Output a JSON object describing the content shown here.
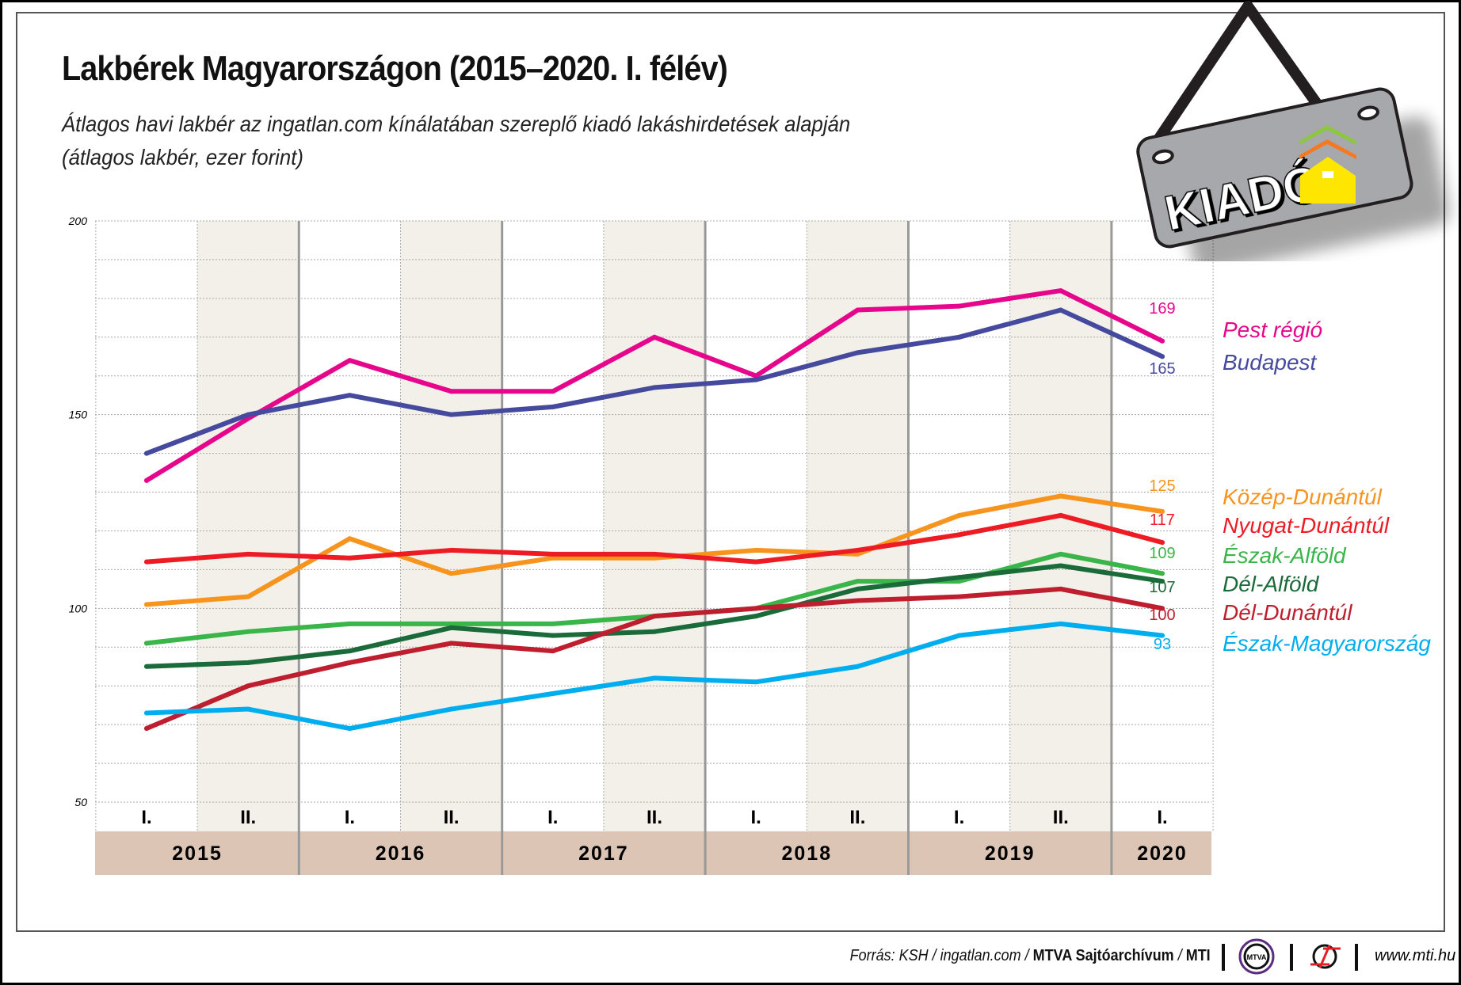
{
  "title": "Lakbérek Magyarországon (2015–2020. I. félév)",
  "subtitle_line1": "Átlagos havi lakbér az ingatlan.com kínálatában szereplő kiadó lakáshirdetések alapján",
  "subtitle_line2": "(átlagos lakbér, ezer forint)",
  "sign": {
    "text": "KIADÓ",
    "colors": {
      "board": "#a7a8ab",
      "house": "#ffe600",
      "roof1": "#8dc63f",
      "roof2": "#f47920"
    }
  },
  "chart_data": {
    "type": "line",
    "title": "Lakbérek Magyarországon (2015–2020. I. félév)",
    "ylim": [
      50,
      200
    ],
    "yticks": [
      "200",
      "150",
      "100",
      "50"
    ],
    "grid": true,
    "legend": "right",
    "x": [
      "I.",
      "II.",
      "I.",
      "II.",
      "I.",
      "II.",
      "I.",
      "II.",
      "I.",
      "II.",
      "I."
    ],
    "years": [
      "2015",
      "2016",
      "2017",
      "2018",
      "2019",
      "2020"
    ],
    "series": [
      {
        "name": "Pest régió",
        "color": "#e5068c",
        "end_label": "169",
        "values": [
          133,
          149,
          164,
          156,
          156,
          170,
          160,
          177,
          178,
          182,
          169
        ]
      },
      {
        "name": "Budapest",
        "color": "#464a9e",
        "end_label": "165",
        "values": [
          140,
          150,
          155,
          150,
          152,
          157,
          159,
          166,
          170,
          177,
          165
        ]
      },
      {
        "name": "Közép-Dunántúl",
        "color": "#f7941d",
        "end_label": "125",
        "values": [
          101,
          103,
          118,
          109,
          113,
          113,
          115,
          114,
          124,
          129,
          125
        ]
      },
      {
        "name": "Nyugat-Dunántúl",
        "color": "#ed1c24",
        "end_label": "117",
        "values": [
          112,
          114,
          113,
          115,
          114,
          114,
          112,
          115,
          119,
          124,
          117
        ]
      },
      {
        "name": "Észak-Alföld",
        "color": "#3ab54a",
        "end_label": "109",
        "values": [
          91,
          94,
          96,
          96,
          96,
          98,
          100,
          107,
          107,
          114,
          109
        ]
      },
      {
        "name": "Dél-Alföld",
        "color": "#1b6b3a",
        "end_label": "107",
        "values": [
          85,
          86,
          89,
          95,
          93,
          94,
          98,
          105,
          108,
          111,
          107
        ]
      },
      {
        "name": "Dél-Dunántúl",
        "color": "#be1e2d",
        "end_label": "100",
        "values": [
          69,
          80,
          86,
          91,
          89,
          98,
          100,
          102,
          103,
          105,
          100
        ]
      },
      {
        "name": "Észak-Magyarország",
        "color": "#00aeef",
        "end_label": "93",
        "values": [
          73,
          74,
          69,
          74,
          78,
          82,
          81,
          85,
          93,
          96,
          93
        ]
      }
    ]
  },
  "footer": {
    "source_prefix": "Forrás: KSH / ingatlan.com / ",
    "source_bold": "MTVA Sajtóarchívum",
    "source_sep": " / ",
    "source_mti": "MTI",
    "logo1": "MTVA",
    "url": "www.mti.hu"
  }
}
